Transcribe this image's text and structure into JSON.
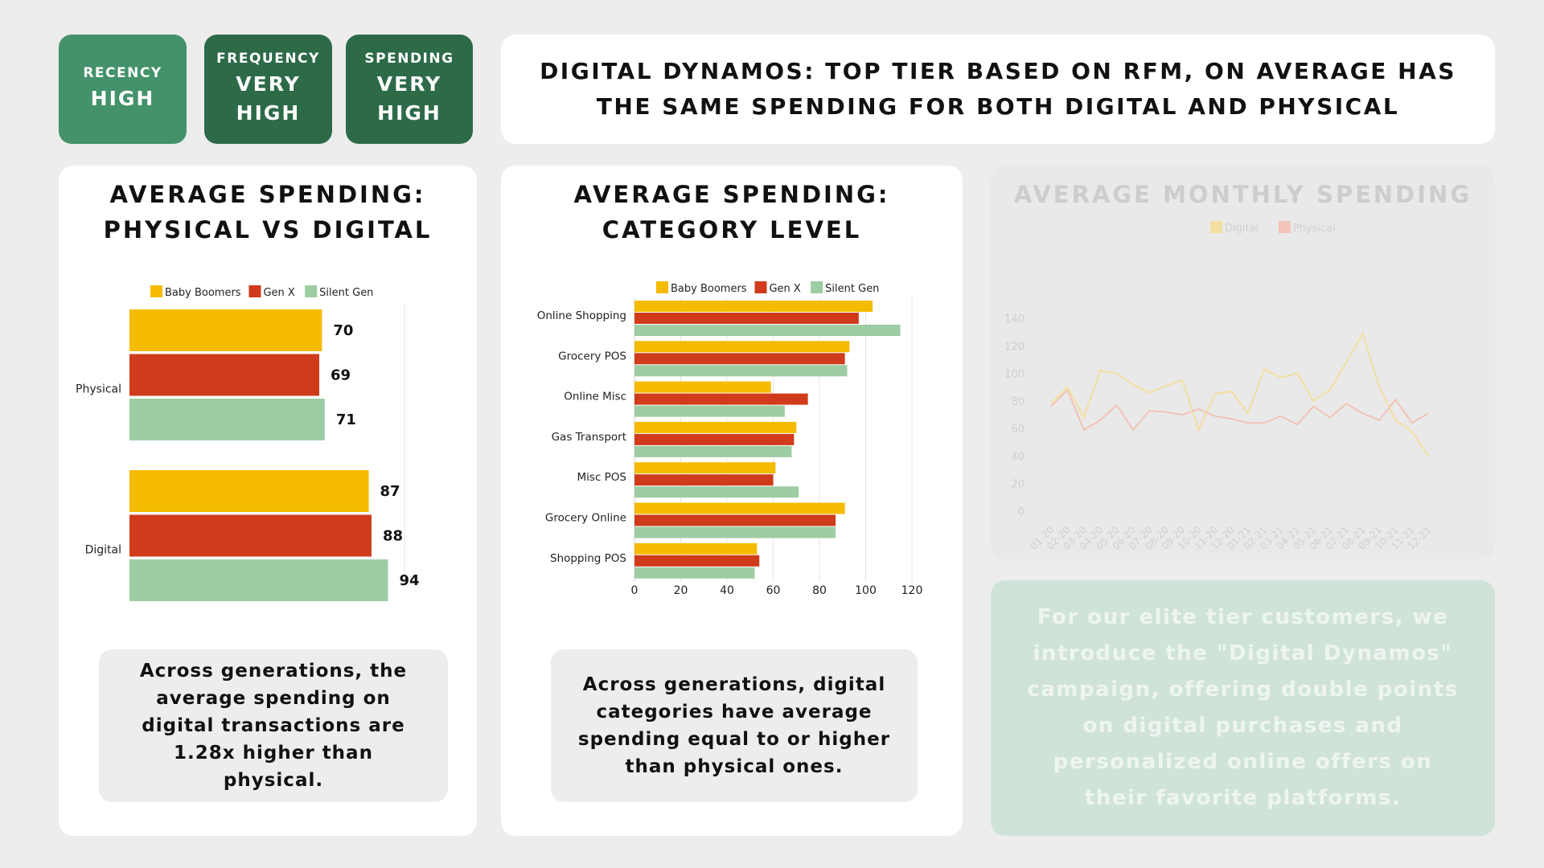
{
  "badges": [
    {
      "key": "RECENCY",
      "value": "HIGH"
    },
    {
      "key": "FREQUENCY",
      "value": "VERY\nHIGH"
    },
    {
      "key": "SPENDING",
      "value": "VERY\nHIGH"
    }
  ],
  "headline": "DIGITAL DYNAMOS: TOP TIER BASED ON RFM, ON AVERAGE HAS THE SAME SPENDING FOR BOTH DIGITAL AND PHYSICAL",
  "colors": {
    "baby_boomers": "#f5bb00",
    "gen_x": "#d03b1b",
    "silent_gen": "#9dcda3",
    "digital": "#f3dfa0",
    "physical": "#f2c3b6"
  },
  "notes": {
    "physical": "Across generations, the average spending on digital transactions are 1.28x higher than physical.",
    "category": "Across generations, digital categories have average spending equal to or higher than physical ones."
  },
  "campaign": "For our elite tier customers, we introduce the \"Digital Dynamos\" campaign, offering double points on digital purchases and personalized online offers on their favorite platforms.",
  "chart_data": [
    {
      "type": "bar",
      "orientation": "horizontal",
      "title": "AVERAGE SPENDING:\nPHYSICAL VS DIGITAL",
      "categories": [
        "Physical",
        "Digital"
      ],
      "series": [
        {
          "name": "Baby Boomers",
          "values": [
            70,
            87
          ]
        },
        {
          "name": "Gen X",
          "values": [
            69,
            88
          ]
        },
        {
          "name": "Silent Gen",
          "values": [
            71,
            94
          ]
        }
      ],
      "xlim": [
        0,
        100
      ],
      "legend": "top"
    },
    {
      "type": "bar",
      "orientation": "horizontal",
      "title": "AVERAGE SPENDING:\nCATEGORY LEVEL",
      "categories": [
        "Online Shopping",
        "Grocery POS",
        "Online Misc",
        "Gas Transport",
        "Misc POS",
        "Grocery Online",
        "Shopping POS"
      ],
      "series": [
        {
          "name": "Baby Boomers",
          "values": [
            103,
            93,
            59,
            70,
            61,
            91,
            53
          ]
        },
        {
          "name": "Gen X",
          "values": [
            97,
            91,
            75,
            69,
            60,
            87,
            54
          ]
        },
        {
          "name": "Silent Gen",
          "values": [
            115,
            92,
            65,
            68,
            71,
            87,
            52
          ]
        }
      ],
      "xlim": [
        0,
        120
      ],
      "xticks": [
        0,
        20,
        40,
        60,
        80,
        100,
        120
      ],
      "legend": "top"
    },
    {
      "type": "line",
      "title": "AVERAGE MONTHLY SPENDING",
      "x": [
        "01-20",
        "02-20",
        "03-20",
        "04-20",
        "05-20",
        "06-20",
        "07-20",
        "08-20",
        "09-20",
        "10-20",
        "11-20",
        "12-20",
        "01-21",
        "02-21",
        "03-21",
        "04-21",
        "05-21",
        "06-21",
        "07-21",
        "08-21",
        "09-21",
        "10-21",
        "11-21",
        "12-21"
      ],
      "series": [
        {
          "name": "Digital",
          "values": [
            78,
            90,
            68,
            102,
            100,
            92,
            86,
            91,
            95,
            59,
            85,
            87,
            71,
            103,
            97,
            100,
            80,
            88,
            108,
            129,
            90,
            66,
            58,
            40
          ]
        },
        {
          "name": "Physical",
          "values": [
            76,
            88,
            59,
            66,
            77,
            59,
            73,
            72,
            70,
            74,
            69,
            67,
            64,
            64,
            69,
            63,
            76,
            68,
            78,
            71,
            66,
            81,
            64,
            71
          ]
        }
      ],
      "ylim": [
        0,
        140
      ],
      "yticks": [
        0,
        20,
        40,
        60,
        80,
        100,
        120,
        140
      ],
      "legend": "top"
    }
  ]
}
